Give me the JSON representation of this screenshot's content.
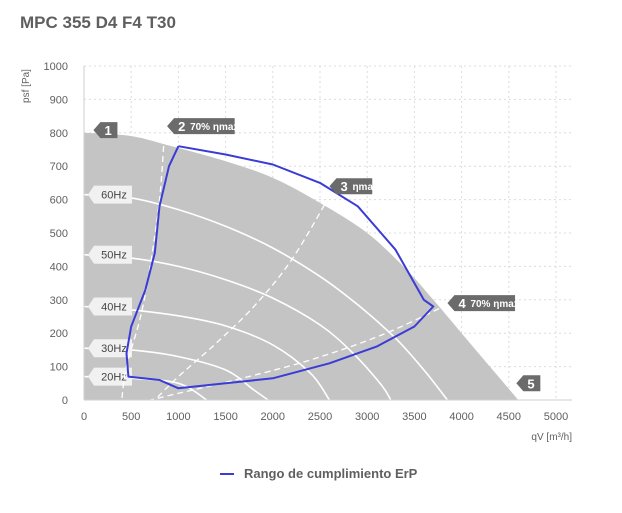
{
  "title": "MPC 355 D4 F4 T30",
  "colors": {
    "region_fill": "#c4c4c4",
    "compliance_line": "#3b3bd6",
    "speed_curves": "#ffffff",
    "efficiency_lines": "#ffffff",
    "grid": "#dcdcdc",
    "marker_fill": "#6b6b6b",
    "text": "#5f5f5f"
  },
  "legend": {
    "compliance_label": "Rango de cumplimiento ErP"
  },
  "chart_data": {
    "type": "line",
    "title": "MPC 355 D4 F4 T30",
    "xlabel": "qV [m³/h]",
    "ylabel": "psf [Pa]",
    "xlim": [
      0,
      5000
    ],
    "ylim": [
      0,
      1000
    ],
    "xticks": [
      0,
      500,
      1000,
      1500,
      2000,
      2500,
      3000,
      3500,
      4000,
      4500,
      5000
    ],
    "yticks": [
      0,
      100,
      200,
      300,
      400,
      500,
      600,
      700,
      800,
      900,
      1000
    ],
    "grid": true,
    "legend_position": "bottom-center",
    "operating_area_boundary": [
      [
        0,
        800
      ],
      [
        500,
        790
      ],
      [
        900,
        762
      ],
      [
        1500,
        715
      ],
      [
        2000,
        665
      ],
      [
        2500,
        590
      ],
      [
        3000,
        500
      ],
      [
        3400,
        395
      ],
      [
        3700,
        300
      ],
      [
        4000,
        200
      ],
      [
        4300,
        100
      ],
      [
        4600,
        0
      ],
      [
        0,
        0
      ]
    ],
    "speed_curves": [
      {
        "name": "60Hz",
        "points": [
          [
            0,
            615
          ],
          [
            500,
            605
          ],
          [
            1000,
            570
          ],
          [
            1500,
            520
          ],
          [
            2000,
            455
          ],
          [
            2500,
            370
          ],
          [
            2900,
            285
          ],
          [
            3300,
            185
          ],
          [
            3600,
            90
          ],
          [
            3850,
            0
          ]
        ]
      },
      {
        "name": "50Hz",
        "points": [
          [
            0,
            435
          ],
          [
            500,
            425
          ],
          [
            1000,
            400
          ],
          [
            1500,
            360
          ],
          [
            2000,
            305
          ],
          [
            2500,
            225
          ],
          [
            2850,
            140
          ],
          [
            3150,
            45
          ],
          [
            3250,
            0
          ]
        ]
      },
      {
        "name": "40Hz",
        "points": [
          [
            0,
            280
          ],
          [
            500,
            270
          ],
          [
            1000,
            252
          ],
          [
            1500,
            222
          ],
          [
            2000,
            165
          ],
          [
            2400,
            80
          ],
          [
            2600,
            0
          ]
        ]
      },
      {
        "name": "30Hz",
        "points": [
          [
            0,
            155
          ],
          [
            500,
            150
          ],
          [
            1000,
            130
          ],
          [
            1500,
            90
          ],
          [
            1800,
            30
          ],
          [
            1950,
            0
          ]
        ]
      },
      {
        "name": "20Hz",
        "points": [
          [
            0,
            70
          ],
          [
            500,
            65
          ],
          [
            1000,
            50
          ],
          [
            1300,
            0
          ]
        ]
      }
    ],
    "efficiency_lines": [
      {
        "marker": "2",
        "label": "70% ηmax",
        "points": [
          [
            850,
            790
          ],
          [
            800,
            600
          ],
          [
            700,
            400
          ],
          [
            600,
            250
          ],
          [
            450,
            100
          ],
          [
            400,
            0
          ]
        ]
      },
      {
        "marker": "3",
        "label": "ηmax",
        "points": [
          [
            2600,
            610
          ],
          [
            2200,
            420
          ],
          [
            1800,
            280
          ],
          [
            1400,
            170
          ],
          [
            1000,
            70
          ],
          [
            750,
            0
          ]
        ]
      },
      {
        "marker": "4",
        "label": "70% ηmax",
        "points": [
          [
            3950,
            300
          ],
          [
            3200,
            200
          ],
          [
            2400,
            120
          ],
          [
            1600,
            60
          ],
          [
            1000,
            20
          ],
          [
            700,
            0
          ]
        ]
      }
    ],
    "markers": [
      {
        "id": "1",
        "label": "",
        "x": 100,
        "y": 808
      },
      {
        "id": "2",
        "label": "70% ηmax",
        "x": 880,
        "y": 820
      },
      {
        "id": "3",
        "label": "ηmax",
        "x": 2600,
        "y": 640
      },
      {
        "id": "4",
        "label": "70% ηmax",
        "x": 3850,
        "y": 290
      },
      {
        "id": "5",
        "label": "",
        "x": 4580,
        "y": 50
      }
    ],
    "series": [
      {
        "name": "Rango de cumplimiento ErP",
        "points": [
          [
            1000,
            760
          ],
          [
            900,
            700
          ],
          [
            800,
            580
          ],
          [
            750,
            440
          ],
          [
            650,
            330
          ],
          [
            500,
            220
          ],
          [
            450,
            140
          ],
          [
            470,
            70
          ],
          [
            800,
            60
          ],
          [
            1000,
            35
          ],
          [
            1500,
            50
          ],
          [
            2000,
            65
          ],
          [
            2600,
            110
          ],
          [
            3100,
            160
          ],
          [
            3500,
            220
          ],
          [
            3700,
            280
          ],
          [
            3600,
            300
          ],
          [
            3300,
            450
          ],
          [
            2900,
            580
          ],
          [
            2500,
            650
          ],
          [
            2000,
            705
          ],
          [
            1500,
            735
          ],
          [
            1000,
            760
          ]
        ]
      }
    ]
  }
}
